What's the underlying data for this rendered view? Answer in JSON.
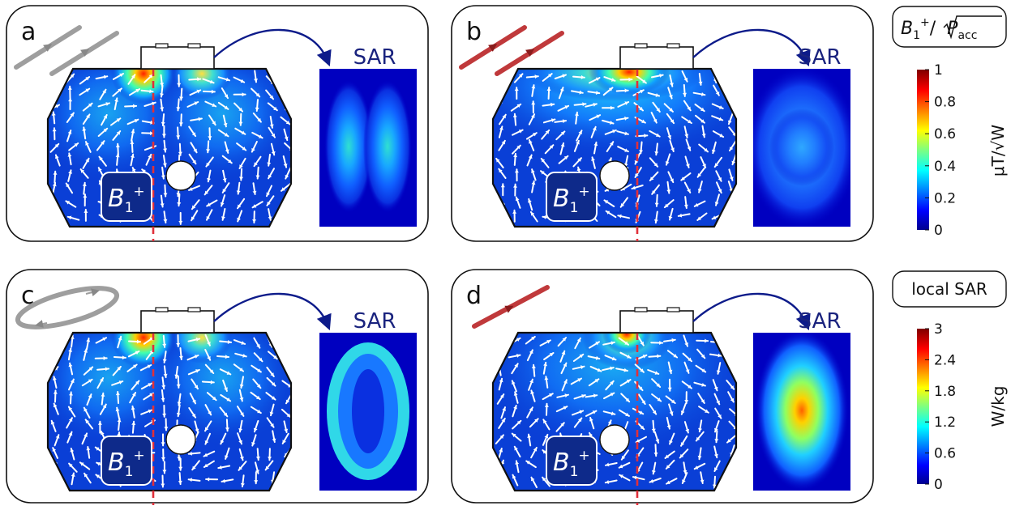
{
  "panels": [
    {
      "id": "a",
      "letter": "a",
      "sar_label": "SAR",
      "field_label": "B",
      "field_sub": "1",
      "field_sup": "+",
      "antenna": "dipole-pair",
      "antenna_color": "#9e9e9e",
      "field_pattern": "dual",
      "sar_pattern": "two-lobes"
    },
    {
      "id": "b",
      "letter": "b",
      "sar_label": "SAR",
      "field_label": "B",
      "field_sub": "1",
      "field_sup": "+",
      "antenna": "dipole-pair",
      "antenna_color": "#c0393b",
      "field_pattern": "wide",
      "sar_pattern": "broad"
    },
    {
      "id": "c",
      "letter": "c",
      "sar_label": "SAR",
      "field_label": "B",
      "field_sub": "1",
      "field_sup": "+",
      "antenna": "loop",
      "antenna_color": "#9e9e9e",
      "field_pattern": "dual",
      "sar_pattern": "ring"
    },
    {
      "id": "d",
      "letter": "d",
      "sar_label": "SAR",
      "field_label": "B",
      "field_sub": "1",
      "field_sup": "+",
      "antenna": "dipole-single",
      "antenna_color": "#c0393b",
      "field_pattern": "center",
      "sar_pattern": "peak"
    }
  ],
  "colorbar_b1": {
    "header_main": "B",
    "header_sub": "1",
    "header_sup": "+",
    "header_slash": "/",
    "header_P": "P",
    "header_Psub": "acc",
    "ticks": [
      "1",
      "0.8",
      "0.6",
      "0.4",
      "0.2",
      "0"
    ],
    "unit": "μT/√W",
    "min": 0,
    "max": 1
  },
  "colorbar_sar": {
    "header": "local SAR",
    "ticks": [
      "3",
      "2.4",
      "1.8",
      "1.2",
      "0.6",
      "0"
    ],
    "unit": "W/kg",
    "min": 0,
    "max": 3
  },
  "colors": {
    "jet_dark_blue": "#00008f",
    "field_base": "#0a3fd6",
    "arrow_color": "#ffffff",
    "dashed_line": "#e0303a",
    "connector_arrow": "#0d1b8a",
    "panel_border": "#111111"
  }
}
